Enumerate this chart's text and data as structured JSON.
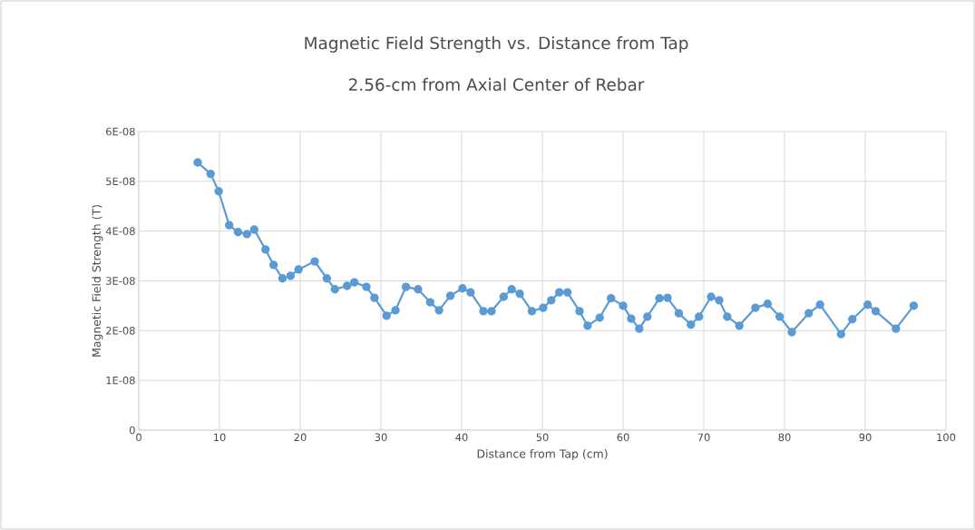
{
  "chart_data": {
    "type": "line",
    "title": "Magnetic Field Strength vs. Distance from Tap",
    "subtitle": "2.56-cm from Axial Center of Rebar",
    "xlabel": "Distance from Tap (cm)",
    "ylabel": "Magnetic Field Strength (T)",
    "x": [
      7.3,
      8.9,
      9.9,
      11.2,
      12.3,
      13.4,
      14.3,
      15.7,
      16.7,
      17.8,
      18.8,
      19.8,
      21.8,
      23.3,
      24.3,
      25.8,
      26.7,
      28.2,
      29.2,
      30.7,
      31.8,
      33.1,
      34.6,
      36.1,
      37.2,
      38.6,
      40.1,
      41.1,
      42.7,
      43.7,
      45.2,
      46.2,
      47.2,
      48.7,
      50.1,
      51.1,
      52.1,
      53.1,
      54.6,
      55.6,
      57.1,
      58.5,
      60.0,
      61.0,
      62.0,
      63.0,
      64.5,
      65.5,
      66.9,
      68.4,
      69.4,
      70.9,
      71.9,
      72.9,
      74.4,
      76.4,
      77.9,
      79.4,
      80.9,
      83.0,
      84.4,
      87.0,
      88.4,
      90.3,
      91.3,
      93.8,
      96.0
    ],
    "series": [
      {
        "color": "#5b9bd5",
        "values": [
          5.38e-08,
          5.15e-08,
          4.8e-08,
          4.12e-08,
          3.98e-08,
          3.94e-08,
          4.03e-08,
          3.63e-08,
          3.32e-08,
          3.05e-08,
          3.1e-08,
          3.23e-08,
          3.39e-08,
          3.05e-08,
          2.83e-08,
          2.9e-08,
          2.97e-08,
          2.88e-08,
          2.66e-08,
          2.3e-08,
          2.41e-08,
          2.88e-08,
          2.83e-08,
          2.57e-08,
          2.41e-08,
          2.7e-08,
          2.85e-08,
          2.77e-08,
          2.39e-08,
          2.39e-08,
          2.68e-08,
          2.83e-08,
          2.74e-08,
          2.39e-08,
          2.46e-08,
          2.61e-08,
          2.77e-08,
          2.77e-08,
          2.39e-08,
          2.1e-08,
          2.26e-08,
          2.65e-08,
          2.5e-08,
          2.24e-08,
          2.04e-08,
          2.28e-08,
          2.65e-08,
          2.66e-08,
          2.35e-08,
          2.12e-08,
          2.28e-08,
          2.68e-08,
          2.61e-08,
          2.28e-08,
          2.1e-08,
          2.46e-08,
          2.54e-08,
          2.28e-08,
          1.97e-08,
          2.35e-08,
          2.52e-08,
          1.93e-08,
          2.23e-08,
          2.52e-08,
          2.39e-08,
          2.04e-08,
          2.5e-08
        ]
      }
    ],
    "xlim": [
      0,
      100
    ],
    "xticks": [
      0,
      10,
      20,
      30,
      40,
      50,
      60,
      70,
      80,
      90,
      100
    ],
    "ylim": [
      0,
      6e-08
    ],
    "yticks": [
      0,
      {
        "value": 1e-08,
        "label": "1E-08"
      },
      {
        "value": 2e-08,
        "label": "2E-08"
      },
      {
        "value": 3e-08,
        "label": "3E-08"
      },
      {
        "value": 4e-08,
        "label": "4E-08"
      },
      {
        "value": 5e-08,
        "label": "5E-08"
      },
      {
        "value": 6e-08,
        "label": "6E-08"
      }
    ],
    "grid": true,
    "marker": "circle",
    "line_style": "solid"
  }
}
